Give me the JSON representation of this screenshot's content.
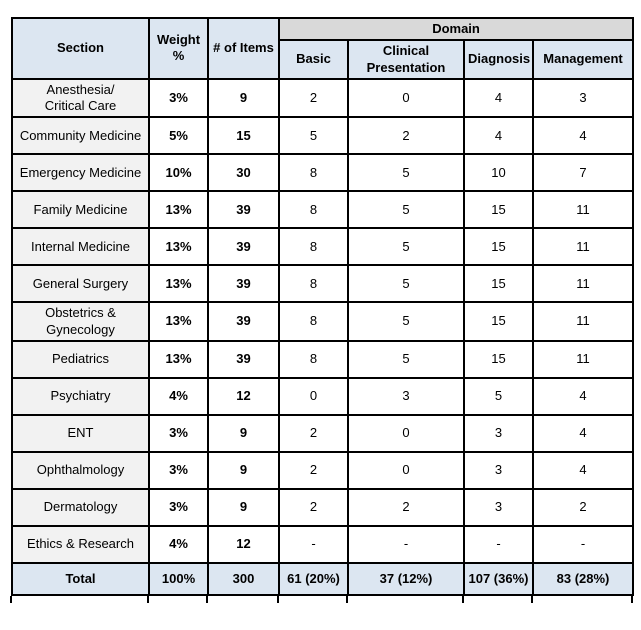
{
  "table": {
    "columns": {
      "section": "Section",
      "weight": "Weight\n%",
      "items": "# of Items",
      "domain_group": "Domain",
      "domains": [
        "Basic",
        "Clinical\nPresentation",
        "Diagnosis",
        "Management"
      ]
    },
    "rows": [
      {
        "section": "Anesthesia/\nCritical Care",
        "weight": "3%",
        "items": "9",
        "values": [
          "2",
          "0",
          "4",
          "3"
        ]
      },
      {
        "section": "Community Medicine",
        "weight": "5%",
        "items": "15",
        "values": [
          "5",
          "2",
          "4",
          "4"
        ]
      },
      {
        "section": "Emergency Medicine",
        "weight": "10%",
        "items": "30",
        "values": [
          "8",
          "5",
          "10",
          "7"
        ]
      },
      {
        "section": "Family Medicine",
        "weight": "13%",
        "items": "39",
        "values": [
          "8",
          "5",
          "15",
          "11"
        ]
      },
      {
        "section": "Internal Medicine",
        "weight": "13%",
        "items": "39",
        "values": [
          "8",
          "5",
          "15",
          "11"
        ]
      },
      {
        "section": "General Surgery",
        "weight": "13%",
        "items": "39",
        "values": [
          "8",
          "5",
          "15",
          "11"
        ]
      },
      {
        "section": "Obstetrics &\nGynecology",
        "weight": "13%",
        "items": "39",
        "values": [
          "8",
          "5",
          "15",
          "11"
        ]
      },
      {
        "section": "Pediatrics",
        "weight": "13%",
        "items": "39",
        "values": [
          "8",
          "5",
          "15",
          "11"
        ]
      },
      {
        "section": "Psychiatry",
        "weight": "4%",
        "items": "12",
        "values": [
          "0",
          "3",
          "5",
          "4"
        ]
      },
      {
        "section": "ENT",
        "weight": "3%",
        "items": "9",
        "values": [
          "2",
          "0",
          "3",
          "4"
        ]
      },
      {
        "section": "Ophthalmology",
        "weight": "3%",
        "items": "9",
        "values": [
          "2",
          "0",
          "3",
          "4"
        ]
      },
      {
        "section": "Dermatology",
        "weight": "3%",
        "items": "9",
        "values": [
          "2",
          "2",
          "3",
          "2"
        ]
      },
      {
        "section": "Ethics & Research",
        "weight": "4%",
        "items": "12",
        "values": [
          "-",
          "-",
          "-",
          "-"
        ]
      }
    ],
    "total": {
      "section": "Total",
      "weight": "100%",
      "items": "300",
      "values": [
        "61 (20%)",
        "37 (12%)",
        "107 (36%)",
        "83 (28%)"
      ]
    }
  },
  "colors": {
    "header_fill": "#DCE6F1",
    "domain_group_fill": "#D9D9D9",
    "section_column_fill": "#F2F2F2",
    "total_row_fill": "#DCE6F1",
    "border": "#000000",
    "text": "#000000"
  }
}
